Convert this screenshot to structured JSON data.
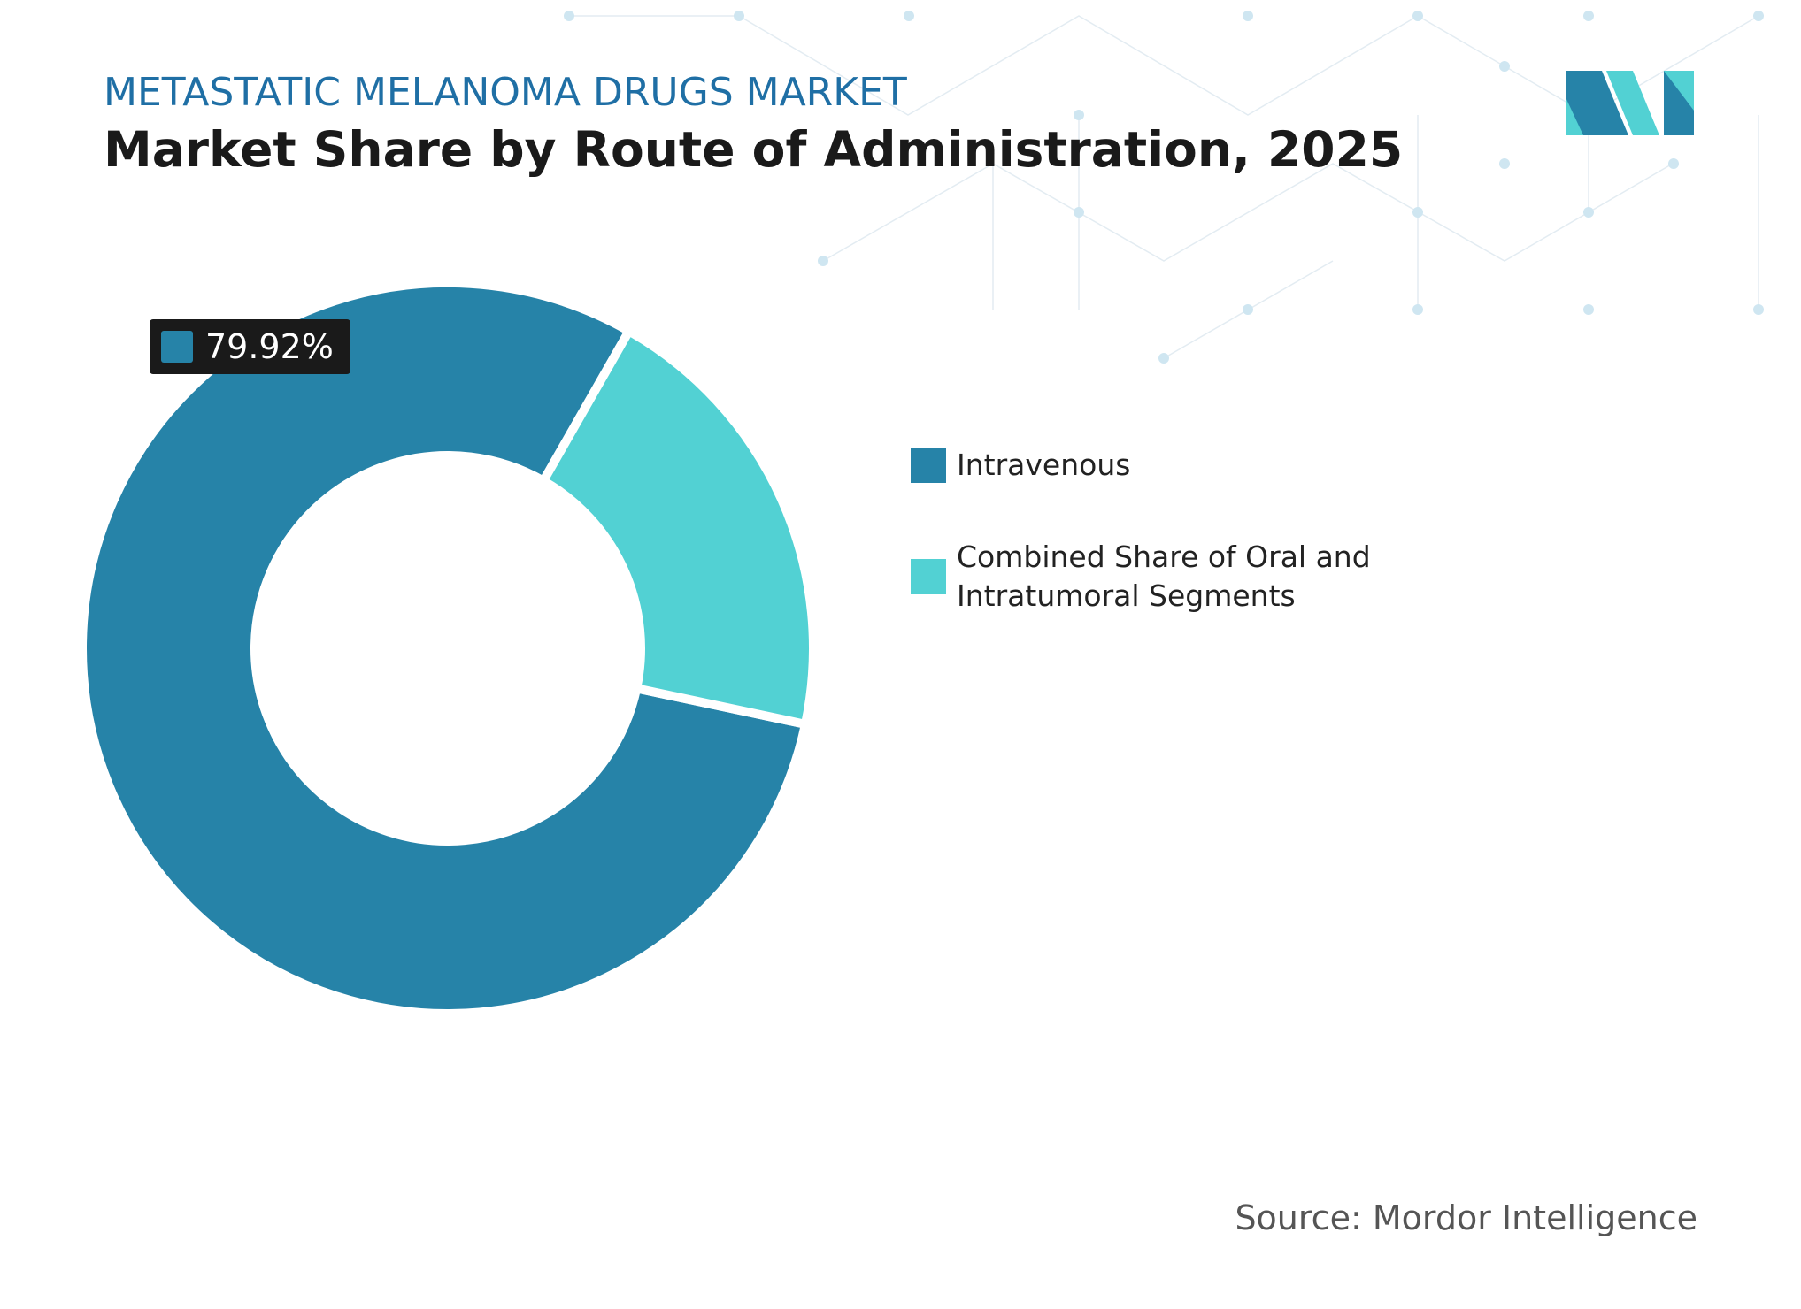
{
  "chart_data": {
    "type": "pie",
    "title": "METASTATIC MELANOMA DRUGS MARKET",
    "subtitle": "Market Share by Route of Administration, 2025",
    "source": "Source: Mordor Intelligence",
    "categories": [
      "Intravenous",
      "Combined Share of Oral and Intratumoral Segments"
    ],
    "values": [
      79.92,
      20.08
    ],
    "value_labels": [
      "79.92%",
      null
    ],
    "colors": [
      "#2683a8",
      "#52d1d3"
    ],
    "donut": true
  }
}
